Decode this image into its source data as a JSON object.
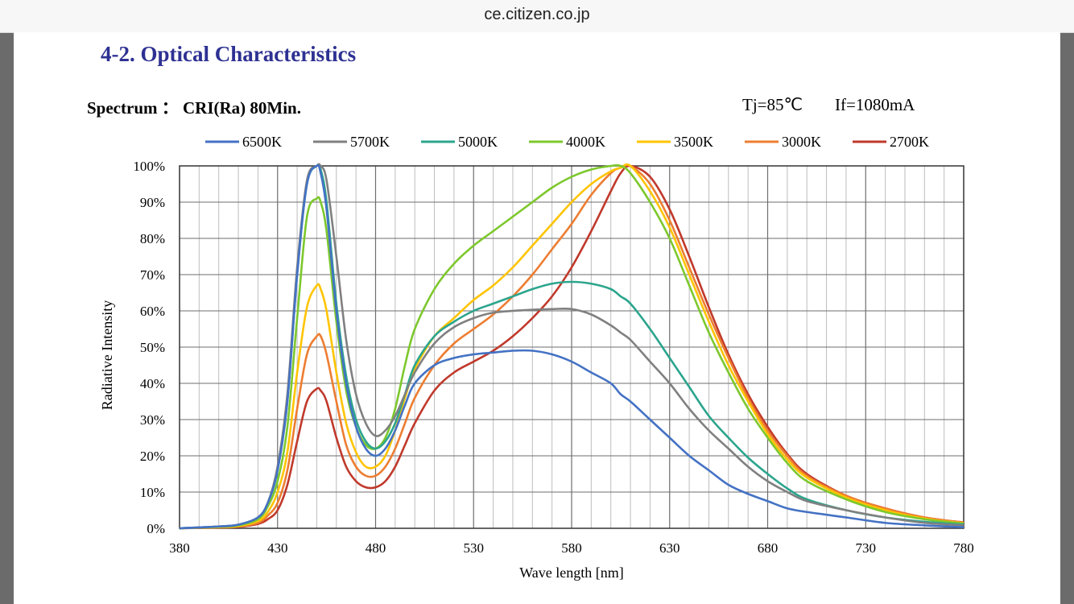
{
  "browser": {
    "url": "ce.citizen.co.jp"
  },
  "document": {
    "section_title": "4-2. Optical Characteristics",
    "spectrum_title": "Spectrum ： CRI(Ra) 80Min.",
    "conditions": {
      "tj": "Tj=85℃",
      "if": "If=1080mA"
    }
  },
  "chart_data": {
    "type": "line",
    "title": "",
    "xlabel": "Wave length [nm]",
    "ylabel": "Radiative Intensity",
    "xlim": [
      380,
      780
    ],
    "ylim": [
      0,
      100
    ],
    "x_ticks": [
      380,
      430,
      480,
      530,
      580,
      630,
      680,
      730,
      780
    ],
    "y_ticks": [
      "0%",
      "10%",
      "20%",
      "30%",
      "40%",
      "50%",
      "60%",
      "70%",
      "80%",
      "90%",
      "100%"
    ],
    "grid": true,
    "legend_position": "top",
    "x": [
      380,
      400,
      410,
      420,
      425,
      430,
      435,
      440,
      445,
      450,
      452,
      455,
      460,
      465,
      470,
      475,
      480,
      485,
      490,
      495,
      500,
      510,
      520,
      530,
      540,
      550,
      560,
      570,
      580,
      590,
      600,
      605,
      610,
      620,
      630,
      640,
      650,
      660,
      670,
      680,
      690,
      700,
      720,
      740,
      760,
      780
    ],
    "series": [
      {
        "name": "6500K",
        "color": "#4472c4",
        "values": [
          0,
          0.5,
          1,
          3,
          7,
          16,
          35,
          70,
          95,
          100,
          98,
          88,
          60,
          40,
          28,
          22,
          20,
          22,
          27,
          34,
          40,
          45,
          47,
          48,
          48.5,
          49,
          49,
          48,
          46,
          43,
          40,
          37,
          35,
          30,
          25,
          20,
          16,
          12,
          9.5,
          7.5,
          5.5,
          4.5,
          3,
          1.5,
          0.8,
          0.3
        ]
      },
      {
        "name": "5700K",
        "color": "#808080",
        "values": [
          0,
          0.5,
          1,
          3,
          7,
          17,
          37,
          72,
          96,
          100,
          100,
          96,
          75,
          52,
          37,
          29,
          25.5,
          27,
          31,
          37,
          43,
          51,
          55.5,
          58,
          59.5,
          60,
          60.3,
          60.5,
          60.5,
          59,
          56,
          54,
          52,
          46,
          40,
          33,
          27,
          22,
          17,
          13,
          10,
          7.5,
          5,
          3,
          1.5,
          0.8
        ]
      },
      {
        "name": "5000K",
        "color": "#2ca58d",
        "values": [
          0,
          0.5,
          1,
          3,
          7,
          16,
          35,
          70,
          95,
          100,
          99,
          90,
          62,
          42,
          30,
          24,
          22,
          24,
          29,
          37,
          45,
          53,
          57,
          60,
          62,
          64,
          66,
          67.5,
          68,
          67.5,
          66,
          64,
          62,
          55,
          47,
          39,
          31,
          25,
          19.5,
          15,
          11,
          8,
          5,
          3,
          1.8,
          1
        ]
      },
      {
        "name": "4000K",
        "color": "#7dc82d",
        "values": [
          0,
          0.4,
          0.8,
          2.5,
          6,
          13,
          28,
          58,
          86,
          91,
          90,
          82,
          57,
          38,
          28,
          23,
          22,
          25,
          33,
          45,
          55,
          66,
          73,
          78,
          82,
          86,
          90,
          94,
          97,
          99,
          100,
          100,
          98,
          90,
          80,
          67,
          54,
          43,
          33,
          25,
          18,
          13,
          8,
          4.5,
          2.5,
          1.3
        ]
      },
      {
        "name": "3500K",
        "color": "#ffc400",
        "values": [
          0,
          0.3,
          0.6,
          2,
          4.5,
          10,
          21,
          43,
          61,
          67,
          66,
          60,
          43,
          29,
          21,
          17,
          17,
          20,
          27,
          36,
          44,
          53,
          58,
          63,
          67,
          72,
          78,
          84,
          90,
          95,
          98.5,
          99.5,
          100,
          93,
          83,
          70,
          57,
          45,
          35,
          26,
          19,
          14,
          8.5,
          5,
          2.7,
          1.4
        ]
      },
      {
        "name": "3000K",
        "color": "#ed7d31",
        "values": [
          0,
          0.3,
          0.5,
          1.5,
          3.5,
          7,
          16,
          33,
          48,
          53,
          53,
          48,
          35,
          23,
          17,
          14.5,
          14.5,
          17,
          22,
          29,
          36,
          45,
          51,
          55,
          59,
          64,
          70,
          77,
          84,
          92,
          98,
          99.5,
          100,
          95,
          85,
          72,
          59,
          47,
          36,
          27,
          20,
          14.5,
          9,
          5.5,
          3,
          1.6
        ]
      },
      {
        "name": "2700K",
        "color": "#c0392b",
        "values": [
          0,
          0.2,
          0.4,
          1.2,
          2.5,
          5,
          12,
          24,
          35,
          38.5,
          38,
          35,
          25,
          17,
          13,
          11.3,
          11.3,
          13,
          17,
          23,
          29,
          38,
          43,
          46,
          49,
          53,
          58,
          64,
          72,
          82,
          93,
          98,
          100,
          97,
          88,
          75,
          61,
          48,
          37,
          28,
          20.5,
          15,
          9,
          5.5,
          3,
          1.6
        ]
      }
    ]
  }
}
